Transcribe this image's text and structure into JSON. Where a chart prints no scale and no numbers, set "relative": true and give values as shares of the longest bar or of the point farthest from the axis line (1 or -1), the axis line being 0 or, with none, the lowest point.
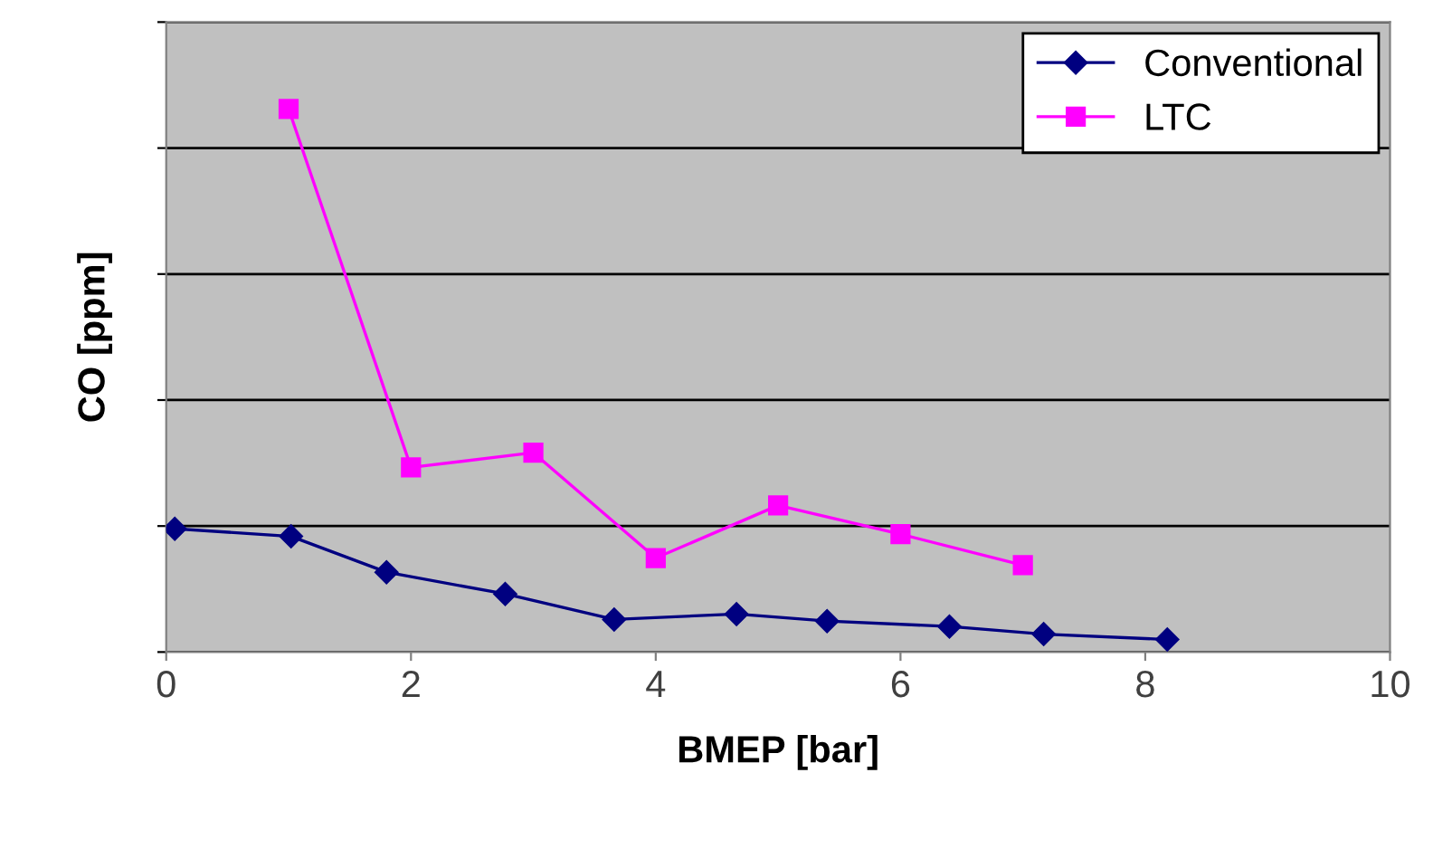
{
  "chart_data": {
    "type": "line",
    "xlabel": "BMEP [bar]",
    "ylabel": "CO [ppm]",
    "relative": true,
    "xlim": [
      0,
      10
    ],
    "xticks": [
      0,
      2,
      4,
      6,
      8,
      10
    ],
    "tick_labels": "x",
    "grid": "y",
    "legend": "top right",
    "series": [
      {
        "name": "Conventional",
        "color": "#000080",
        "marker": "diamond",
        "x": [
          0.07,
          1.02,
          1.8,
          2.77,
          3.66,
          4.66,
          5.4,
          6.4,
          7.17,
          8.18
        ],
        "values": [
          0.227,
          0.213,
          0.147,
          0.107,
          0.06,
          0.07,
          0.057,
          0.047,
          0.033,
          0.023
        ]
      },
      {
        "name": "LTC",
        "color": "#ff00ff",
        "marker": "square",
        "x": [
          1,
          2,
          3,
          4,
          5,
          6,
          7
        ],
        "values": [
          1.0,
          0.34,
          0.367,
          0.173,
          0.27,
          0.217,
          0.16
        ]
      }
    ]
  }
}
